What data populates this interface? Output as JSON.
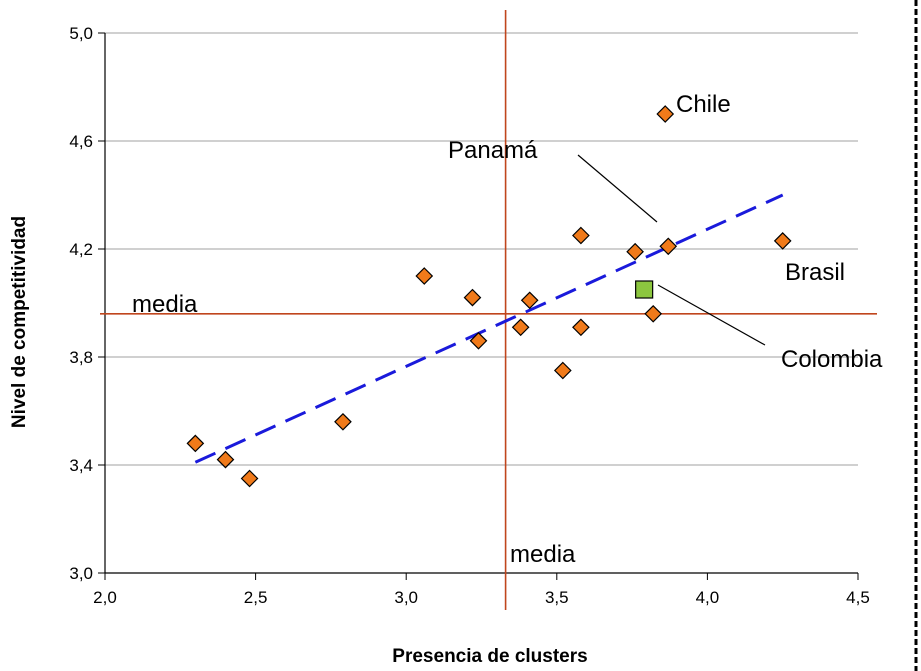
{
  "chart_data": {
    "type": "scatter",
    "xlabel": "Presencia de clusters",
    "ylabel": "Nivel de competitividad",
    "xlim": [
      2.0,
      4.5
    ],
    "ylim": [
      3.0,
      5.0
    ],
    "x_ticks": [
      "2,0",
      "2,5",
      "3,0",
      "3,5",
      "4,0",
      "4,5"
    ],
    "y_ticks": [
      "3,0",
      "3,4",
      "3,8",
      "4,2",
      "4,6",
      "5,0"
    ],
    "grid": "horizontal",
    "series": [
      {
        "marker": "diamond",
        "color": "#f07a1a",
        "points": [
          {
            "x": 2.3,
            "y": 3.48
          },
          {
            "x": 2.4,
            "y": 3.42
          },
          {
            "x": 2.48,
            "y": 3.35
          },
          {
            "x": 2.79,
            "y": 3.56
          },
          {
            "x": 3.06,
            "y": 4.1
          },
          {
            "x": 3.22,
            "y": 4.02
          },
          {
            "x": 3.24,
            "y": 3.86
          },
          {
            "x": 3.38,
            "y": 3.91
          },
          {
            "x": 3.41,
            "y": 4.01
          },
          {
            "x": 3.52,
            "y": 3.75
          },
          {
            "x": 3.58,
            "y": 3.91
          },
          {
            "x": 3.58,
            "y": 4.25
          },
          {
            "x": 3.76,
            "y": 4.19
          },
          {
            "x": 3.82,
            "y": 3.96
          },
          {
            "x": 3.86,
            "y": 4.7
          },
          {
            "x": 3.87,
            "y": 4.21
          },
          {
            "x": 4.25,
            "y": 4.23
          }
        ]
      },
      {
        "marker": "square",
        "color": "#8cc63f",
        "points": [
          {
            "x": 3.79,
            "y": 4.05
          }
        ]
      }
    ],
    "trendline": {
      "x1": 2.3,
      "y1": 3.41,
      "x2": 4.25,
      "y2": 4.4,
      "color": "#1a1adb",
      "style": "dashed"
    },
    "mean_lines": {
      "x": 3.33,
      "y": 3.96,
      "color": "#c0461d"
    },
    "annotations": [
      {
        "id": "chile",
        "text": "Chile"
      },
      {
        "id": "panama",
        "text": "Panamá"
      },
      {
        "id": "brasil",
        "text": "Brasil"
      },
      {
        "id": "colombia",
        "text": "Colombia"
      },
      {
        "id": "media-h",
        "text": "media"
      },
      {
        "id": "media-v",
        "text": "media"
      }
    ]
  }
}
